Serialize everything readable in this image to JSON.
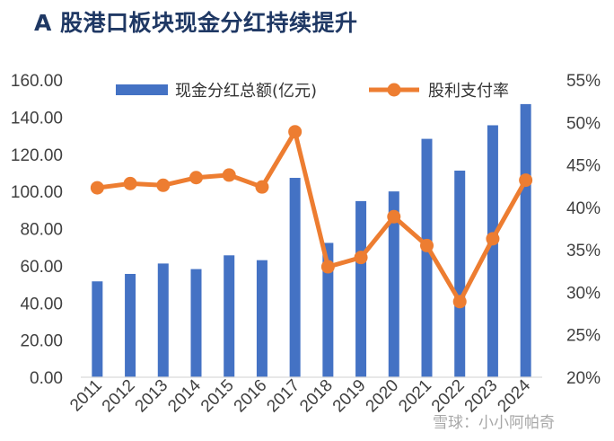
{
  "title": "A 股港口板块现金分红持续提升",
  "watermark": "雪球：小小阿帕奇",
  "chart_data": {
    "type": "bar",
    "categories": [
      "2011",
      "2012",
      "2013",
      "2014",
      "2015",
      "2016",
      "2017",
      "2018",
      "2019",
      "2020",
      "2021",
      "2022",
      "2023",
      "2024"
    ],
    "series": [
      {
        "name": "现金分红总额(亿元)",
        "type": "bar",
        "axis": "left",
        "color": "#4472c4",
        "values": [
          51.6,
          55.6,
          61.2,
          58.2,
          65.6,
          63.0,
          107.3,
          72.3,
          94.8,
          100.0,
          128.3,
          111.2,
          135.6,
          147.0
        ]
      },
      {
        "name": "股利支付率",
        "type": "line",
        "axis": "right",
        "color": "#ed7d31",
        "values": [
          42.3,
          42.8,
          42.6,
          43.5,
          43.8,
          42.4,
          48.9,
          33.0,
          34.1,
          38.9,
          35.5,
          28.9,
          36.3,
          43.2
        ]
      }
    ],
    "ylim_left": [
      0,
      160
    ],
    "yticks_left": [
      "0.00",
      "20.00",
      "40.00",
      "60.00",
      "80.00",
      "100.00",
      "120.00",
      "140.00",
      "160.00"
    ],
    "ylim_right": [
      20,
      55
    ],
    "yticks_right": [
      "20%",
      "25%",
      "30%",
      "35%",
      "40%",
      "45%",
      "50%",
      "55%"
    ],
    "legend_position": "top-center",
    "grid": false
  }
}
